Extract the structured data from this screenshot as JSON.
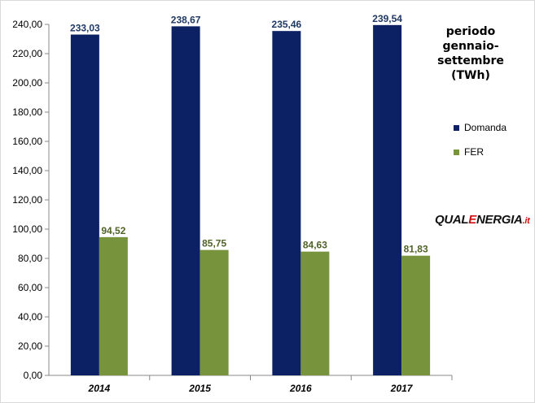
{
  "chart_data": {
    "type": "bar",
    "title": "periodo gennaio-settembre (TWh)",
    "title_lines": [
      "periodo",
      "gennaio-settembre",
      "(TWh)"
    ],
    "categories": [
      "2014",
      "2015",
      "2016",
      "2017"
    ],
    "series": [
      {
        "name": "Domanda",
        "color": "#0c2164",
        "label_color": "#1f3864",
        "values": [
          233.03,
          238.67,
          235.46,
          239.54
        ],
        "labels": [
          "233,03",
          "238,67",
          "235,46",
          "239,54"
        ]
      },
      {
        "name": "FER",
        "color": "#77933c",
        "label_color": "#4f6228",
        "values": [
          94.52,
          85.75,
          84.63,
          81.83
        ],
        "labels": [
          "94,52",
          "85,75",
          "84,63",
          "81,83"
        ]
      }
    ],
    "ylim": [
      0,
      240
    ],
    "yticks": [
      "0,00",
      "20,00",
      "40,00",
      "60,00",
      "80,00",
      "100,00",
      "120,00",
      "140,00",
      "160,00",
      "180,00",
      "200,00",
      "220,00",
      "240,00"
    ],
    "xlabel": "",
    "ylabel": "",
    "grid": false,
    "legend_position": "right"
  },
  "logo": {
    "part1": "QUAL",
    "part2": "E",
    "part3": "NERGIA",
    "part4": ".it"
  }
}
